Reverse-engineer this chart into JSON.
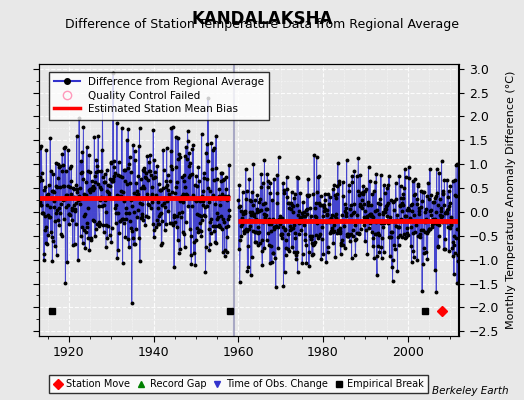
{
  "title": "KANDALAKSHA",
  "subtitle": "Difference of Station Temperature Data from Regional Average",
  "ylabel": "Monthly Temperature Anomaly Difference (°C)",
  "xlim": [
    1913,
    2012
  ],
  "ylim": [
    -2.6,
    3.1
  ],
  "yticks": [
    -2.5,
    -2,
    -1.5,
    -1,
    -0.5,
    0,
    0.5,
    1,
    1.5,
    2,
    2.5,
    3
  ],
  "xticks": [
    1920,
    1940,
    1960,
    1980,
    2000
  ],
  "background_color": "#e8e8e8",
  "plot_bg_color": "#e8e8e8",
  "line_color": "#3333cc",
  "dot_color": "#000000",
  "bias_color": "#ff0000",
  "legend_items": [
    "Difference from Regional Average",
    "Quality Control Failed",
    "Estimated Station Mean Bias"
  ],
  "bias1_start": 1913,
  "bias1_end": 1958,
  "bias1_val": 0.3,
  "bias2_start": 1960,
  "bias2_end": 2012,
  "bias2_val": -0.18,
  "gap_start": 1958,
  "gap_end": 1960,
  "vertical_line_x": 1959,
  "station_moves": [
    2008
  ],
  "empirical_breaks": [
    1916,
    1958,
    2004
  ],
  "time_obs_changes": [],
  "record_gaps": [],
  "seed": 42,
  "start_year": 1913,
  "end_year": 2011,
  "watermark": "Berkeley Earth",
  "title_fontsize": 12,
  "subtitle_fontsize": 9,
  "axis_fontsize": 8,
  "tick_fontsize": 9
}
